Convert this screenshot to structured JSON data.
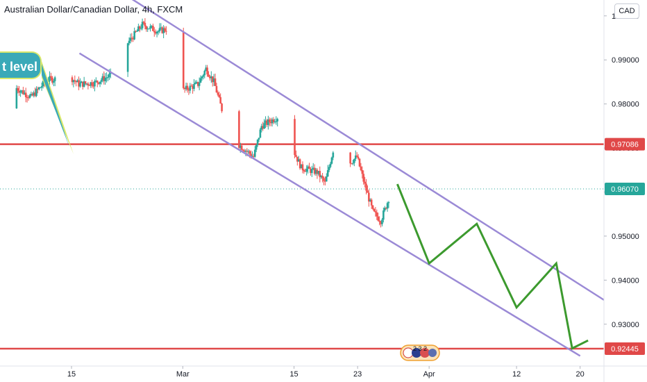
{
  "title": "Australian Dollar/Canadian Dollar, 4h, FXCM",
  "currency_button": "CAD",
  "callout_text": "t level",
  "event_badge_text": "2 3 2",
  "colors": {
    "up_candle": "#26a69a",
    "down_candle": "#ef5350",
    "channel": "#9b8ad6",
    "projection": "#3c9a2e",
    "support_resistance": "#e04848",
    "current_price_line": "#26a69a",
    "callout_bg": "#3aa9b8",
    "callout_border": "#d9e86b",
    "axis_text": "#131722"
  },
  "chart_data": {
    "type": "candlestick",
    "symbol": "AUDCAD",
    "timeframe": "4h",
    "y_axis": {
      "ylim": [
        0.9205,
        1.0036
      ],
      "ticks": [
        "1.00000",
        "0.99000",
        "0.98000",
        "0.97000",
        "0.96000",
        "0.95000",
        "0.94000",
        "0.93000"
      ]
    },
    "x_axis": {
      "labels": [
        {
          "label": "15",
          "date": "2021-02-15"
        },
        {
          "label": "Mar",
          "date": "2021-03-01"
        },
        {
          "label": "15",
          "date": "2021-03-15"
        },
        {
          "label": "23",
          "date": "2021-03-23"
        },
        {
          "label": "Apr",
          "date": "2021-04-01"
        },
        {
          "label": "12",
          "date": "2021-04-12"
        },
        {
          "label": "20",
          "date": "2021-04-20"
        }
      ],
      "xlim": [
        "2021-02-06",
        "2021-04-23"
      ]
    },
    "price_levels": [
      {
        "value": 0.97086,
        "label": "0.97086"
      },
      {
        "value": 0.92445,
        "label": "0.92445"
      }
    ],
    "current_price": {
      "value": 0.9607,
      "label": "0.96070"
    },
    "channel": {
      "upper": [
        {
          "date": "2021-02-22",
          "price": 1.0045
        },
        {
          "date": "2021-04-23",
          "price": 0.9355
        }
      ],
      "lower": [
        {
          "date": "2021-02-16",
          "price": 0.9915
        },
        {
          "date": "2021-04-20",
          "price": 0.9228
        }
      ]
    },
    "projection": [
      {
        "date": "2021-03-28",
        "price": 0.9618
      },
      {
        "date": "2021-04-01",
        "price": 0.9438
      },
      {
        "date": "2021-04-07",
        "price": 0.9528
      },
      {
        "date": "2021-04-12",
        "price": 0.9338
      },
      {
        "date": "2021-04-17",
        "price": 0.9438
      },
      {
        "date": "2021-04-19",
        "price": 0.9245
      },
      {
        "date": "2021-04-21",
        "price": 0.9263
      }
    ],
    "price_path": [
      {
        "date": "2021-02-06",
        "price": 0.979
      },
      {
        "date": "2021-02-08",
        "price": 0.9838
      },
      {
        "date": "2021-02-10",
        "price": 0.9815
      },
      {
        "date": "2021-02-12",
        "price": 0.9855
      },
      {
        "date": "2021-02-15",
        "price": 0.986
      },
      {
        "date": "2021-02-16",
        "price": 0.9845
      },
      {
        "date": "2021-02-18",
        "price": 0.9848
      },
      {
        "date": "2021-02-20",
        "price": 0.9865
      },
      {
        "date": "2021-02-22",
        "price": 0.9935
      },
      {
        "date": "2021-02-24",
        "price": 0.998
      },
      {
        "date": "2021-02-26",
        "price": 0.9965
      },
      {
        "date": "2021-02-27",
        "price": 0.997
      },
      {
        "date": "2021-03-01",
        "price": 0.983
      },
      {
        "date": "2021-03-03",
        "price": 0.9845
      },
      {
        "date": "2021-03-04",
        "price": 0.988
      },
      {
        "date": "2021-03-05",
        "price": 0.985
      },
      {
        "date": "2021-03-07",
        "price": 0.9725
      },
      {
        "date": "2021-03-08",
        "price": 0.971
      },
      {
        "date": "2021-03-10",
        "price": 0.968
      },
      {
        "date": "2021-03-11",
        "price": 0.975
      },
      {
        "date": "2021-03-14",
        "price": 0.978
      },
      {
        "date": "2021-03-15",
        "price": 0.9695
      },
      {
        "date": "2021-03-16",
        "price": 0.9655
      },
      {
        "date": "2021-03-18",
        "price": 0.9645
      },
      {
        "date": "2021-03-19",
        "price": 0.962
      },
      {
        "date": "2021-03-20",
        "price": 0.9695
      },
      {
        "date": "2021-03-22",
        "price": 0.9665
      },
      {
        "date": "2021-03-23",
        "price": 0.968
      },
      {
        "date": "2021-03-24",
        "price": 0.9615
      },
      {
        "date": "2021-03-25",
        "price": 0.9555
      },
      {
        "date": "2021-03-26",
        "price": 0.9535
      },
      {
        "date": "2021-03-27",
        "price": 0.9585
      },
      {
        "date": "2021-03-28",
        "price": 0.9607
      }
    ]
  }
}
